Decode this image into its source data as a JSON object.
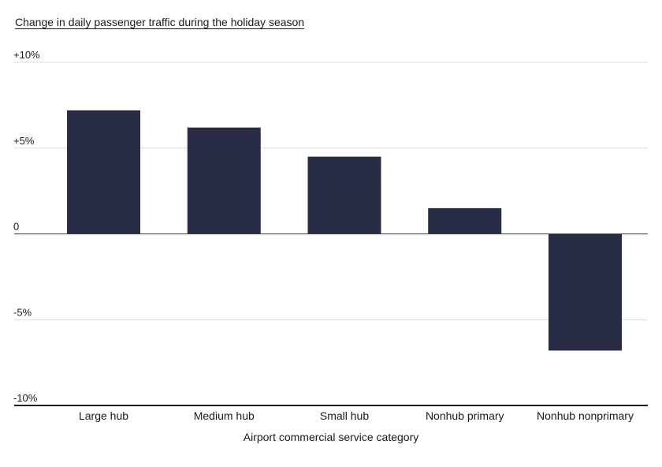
{
  "chart_data": {
    "type": "bar",
    "title": "Change in daily passenger traffic during the holiday season",
    "xlabel": "Airport commercial service category",
    "ylabel": "",
    "categories": [
      "Large hub",
      "Medium hub",
      "Small hub",
      "Nonhub primary",
      "Nonhub nonprimary"
    ],
    "values": [
      7.2,
      6.2,
      4.5,
      1.5,
      -6.8
    ],
    "ylim": [
      -10,
      10
    ],
    "yticks": [
      10,
      5,
      0,
      -5,
      -10
    ],
    "ytick_labels": [
      "+10%",
      "+5%",
      "0",
      "-5%",
      "-10%"
    ],
    "grid": true,
    "legend": "none",
    "bar_color": "#282d45"
  }
}
